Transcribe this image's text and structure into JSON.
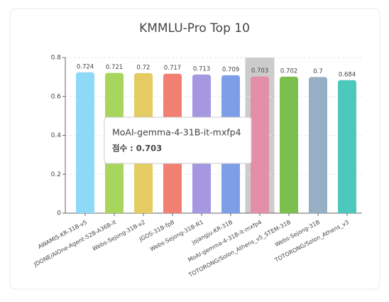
{
  "chart_data": {
    "type": "bar",
    "title": "KMMLU-Pro Top 10",
    "categories": [
      "AWAMIS-KR-31B-v5",
      "JDONE/AIOne-Agent-52B-A36B-it",
      "Webs-Sejong-31B-v2",
      "JGOS-31B-fp8",
      "Webs-Sejong-31B-R1",
      "jojangju-KR-31B",
      "MoAI-gemma-4-31B-it-mxfp4",
      "TOTORONG/Solon_Athens_v5_STEM-31B",
      "Webs-Sejong-31B",
      "TOTORONG/Solon_Athens_v3"
    ],
    "values": [
      0.724,
      0.721,
      0.72,
      0.717,
      0.713,
      0.709,
      0.703,
      0.702,
      0.7,
      0.684
    ],
    "colors": [
      "#8ed8f8",
      "#a8d65c",
      "#e5cc62",
      "#f28072",
      "#a597e0",
      "#7f9ee8",
      "#e48fa8",
      "#7bbf4e",
      "#96afc4",
      "#4dc8bd"
    ],
    "ylim": [
      0,
      0.8
    ],
    "yticks": [
      0,
      0.2,
      0.4,
      0.6,
      0.8
    ],
    "grid": true,
    "tooltip": {
      "title": "MoAI-gemma-4-31B-it-mxfp4",
      "text": "점수 : 0.703"
    }
  }
}
